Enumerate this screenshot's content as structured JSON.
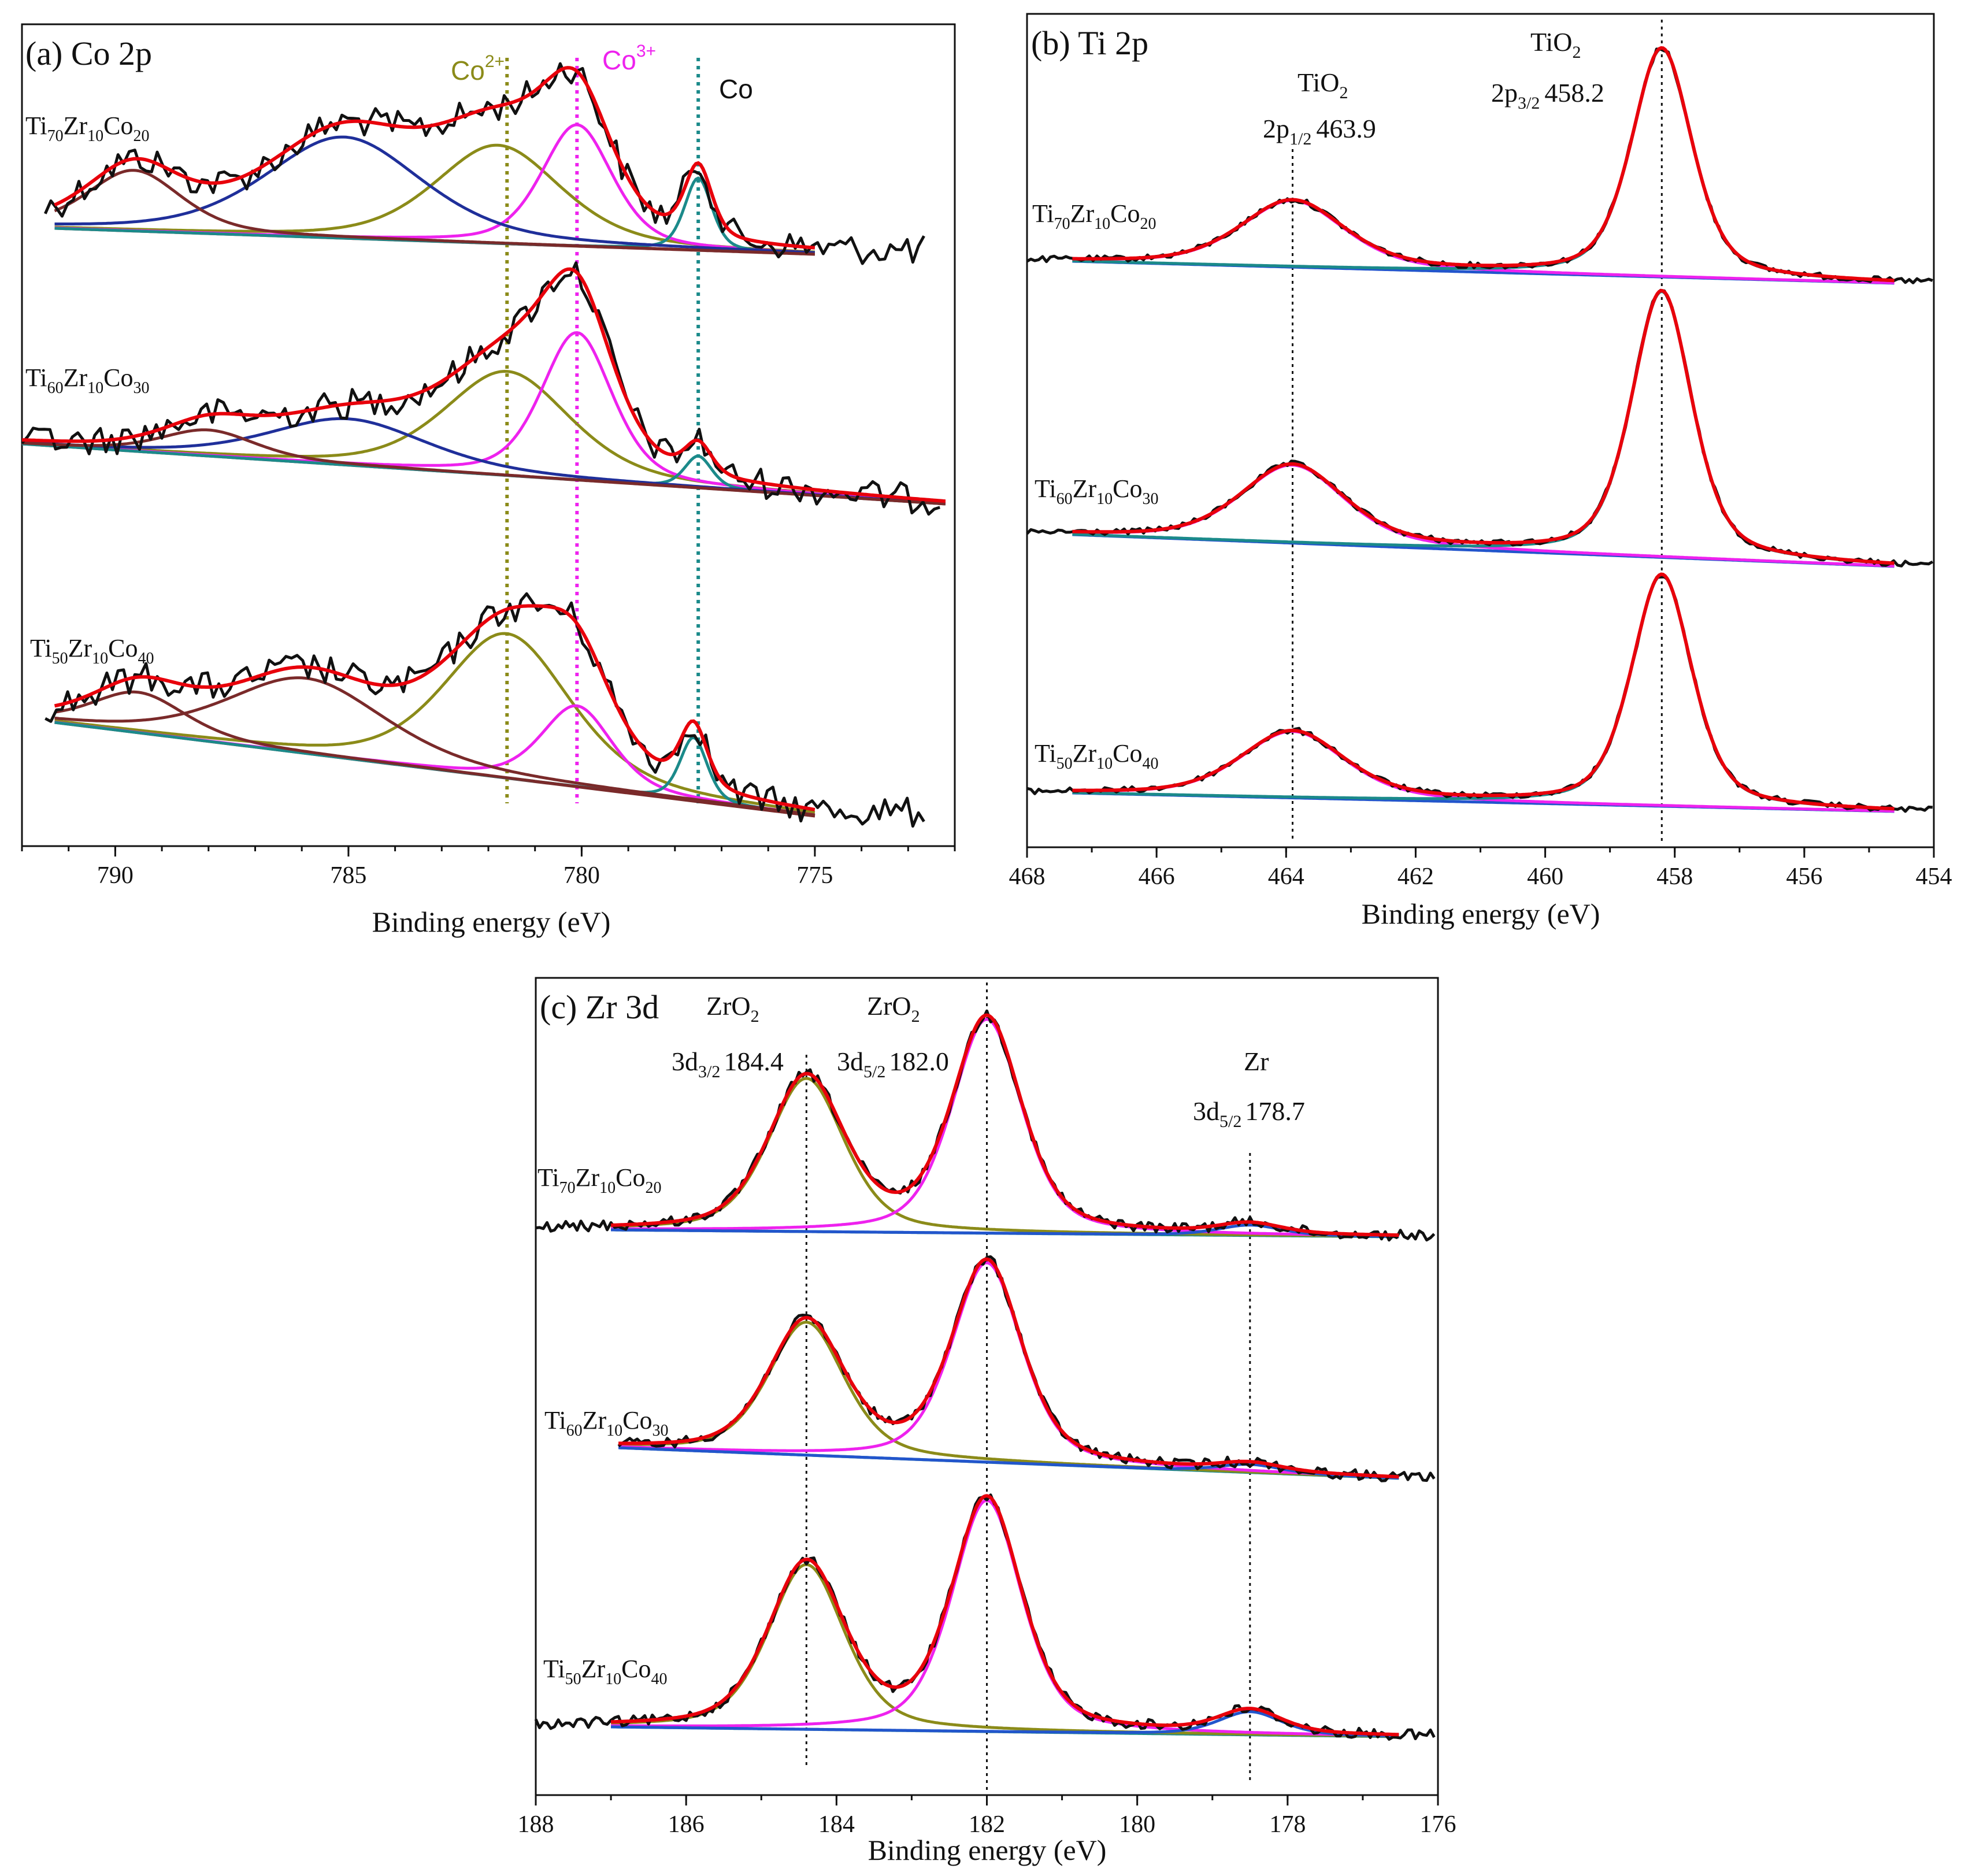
{
  "colors": {
    "raw": "#111111",
    "envelope": "#e8000b",
    "co2plus": "#8b8b19",
    "co3plus": "#ee22ee",
    "co_metal": "#1b8a8a",
    "sat_blue": "#1f2f9a",
    "sat_brown": "#7a2a2a",
    "zro2_32": "#8b8b19",
    "zro2_52": "#ee22ee",
    "baseline": "#1f8ab0"
  },
  "chart_data": [
    {
      "type": "line",
      "panel": "a",
      "title": "(a) Co 2p",
      "xlabel": "Binding energy (eV)",
      "ylabel": "",
      "xlim": [
        792,
        772
      ],
      "x_reversed": true,
      "x_ticks": [
        790,
        785,
        780,
        775
      ],
      "x_tick_labels": [
        "790",
        "785",
        "780",
        "775"
      ],
      "reference_lines": [
        {
          "label": "Co2+",
          "x": 781.6,
          "color": "#8b8b19"
        },
        {
          "label": "Co3+",
          "x": 780.1,
          "color": "#ee22ee"
        },
        {
          "label": "Co",
          "x": 777.5,
          "color": "#1b8a8a"
        }
      ],
      "samples": [
        {
          "name": "Ti70Zr10Co20",
          "components": [
            {
              "label": "Co2+",
              "center": 781.8,
              "color": "#8b8b19"
            },
            {
              "label": "Co3+",
              "center": 780.1,
              "color": "#ee22ee"
            },
            {
              "label": "Co",
              "center": 777.5,
              "color": "#1b8a8a"
            },
            {
              "label": "satellite",
              "center": 785.1,
              "color": "#1f2f9a"
            },
            {
              "label": "satellite",
              "center": 789.6,
              "color": "#7a2a2a"
            }
          ]
        },
        {
          "name": "Ti60Zr10Co30",
          "components": [
            {
              "label": "Co2+",
              "center": 781.6,
              "color": "#8b8b19"
            },
            {
              "label": "Co3+",
              "center": 780.1,
              "color": "#ee22ee"
            },
            {
              "label": "Co",
              "center": 777.5,
              "color": "#1b8a8a"
            },
            {
              "label": "satellite",
              "center": 785.0,
              "color": "#1f2f9a"
            },
            {
              "label": "satellite",
              "center": 788.0,
              "color": "#7a2a2a"
            }
          ]
        },
        {
          "name": "Ti50Zr10Co40",
          "components": [
            {
              "label": "Co2+",
              "center": 781.6,
              "color": "#8b8b19"
            },
            {
              "label": "Co3+",
              "center": 780.1,
              "color": "#ee22ee"
            },
            {
              "label": "Co",
              "center": 777.6,
              "color": "#1b8a8a"
            },
            {
              "label": "satellite",
              "center": 785.9,
              "color": "#7a2a2a"
            },
            {
              "label": "satellite",
              "center": 789.5,
              "color": "#7a2a2a"
            }
          ]
        }
      ]
    },
    {
      "type": "line",
      "panel": "b",
      "title": "(b) Ti 2p",
      "xlabel": "Binding energy (eV)",
      "ylabel": "",
      "xlim": [
        468,
        454
      ],
      "x_reversed": true,
      "x_ticks": [
        468,
        466,
        464,
        462,
        460,
        458,
        456,
        454
      ],
      "x_tick_labels": [
        "468",
        "466",
        "464",
        "462",
        "460",
        "458",
        "456",
        "454"
      ],
      "peaks": [
        {
          "species": "TiO2",
          "orbital": "2p",
          "sub": "1/2",
          "energy": 463.9
        },
        {
          "species": "TiO2",
          "orbital": "2p",
          "sub": "3/2",
          "energy": 458.2
        }
      ],
      "samples": [
        {
          "name": "Ti70Zr10Co20"
        },
        {
          "name": "Ti60Zr10Co30"
        },
        {
          "name": "Ti50Zr10Co40"
        }
      ]
    },
    {
      "type": "line",
      "panel": "c",
      "title": "(c) Zr 3d",
      "xlabel": "Binding energy (eV)",
      "ylabel": "",
      "xlim": [
        188,
        176
      ],
      "x_reversed": true,
      "x_ticks": [
        188,
        186,
        184,
        182,
        180,
        178,
        176
      ],
      "x_tick_labels": [
        "188",
        "186",
        "184",
        "182",
        "180",
        "178",
        "176"
      ],
      "peaks": [
        {
          "species": "ZrO2",
          "orbital": "3d",
          "sub": "3/2",
          "energy": 184.4
        },
        {
          "species": "ZrO2",
          "orbital": "3d",
          "sub": "5/2",
          "energy": 182.0
        },
        {
          "species": "Zr",
          "orbital": "3d",
          "sub": "5/2",
          "energy": 178.7
        }
      ],
      "samples": [
        {
          "name": "Ti70Zr10Co20"
        },
        {
          "name": "Ti60Zr10Co30"
        },
        {
          "name": "Ti50Zr10Co40"
        }
      ]
    }
  ],
  "text": {
    "a_title": "(a) Co 2p",
    "b_title": "(b) Ti 2p",
    "c_title": "(c) Zr 3d",
    "xlabel": "Binding energy (eV)",
    "co2_base": "Co",
    "co2_sup": "2+",
    "co3_base": "Co",
    "co3_sup": "3+",
    "co_label": "Co",
    "tio2_a": "TiO",
    "tio2_a_sub": "2",
    "tio2_a_orb": "2p",
    "tio2_a_orb_sub": "1/2",
    "tio2_a_val": "463.9",
    "tio2_b": "TiO",
    "tio2_b_sub": "2",
    "tio2_b_orb": "2p",
    "tio2_b_orb_sub": "3/2",
    "tio2_b_val": "458.2",
    "zro2_a": "ZrO",
    "zro2_a_sub": "2",
    "zro2_a_orb": "3d",
    "zro2_a_orb_sub": "3/2",
    "zro2_a_val": "184.4",
    "zro2_b": "ZrO",
    "zro2_b_sub": "2",
    "zro2_b_orb": "3d",
    "zro2_b_orb_sub": "5/2",
    "zro2_b_val": "182.0",
    "zr_c": "Zr",
    "zr_c_orb": "3d",
    "zr_c_orb_sub": "5/2",
    "zr_c_val": "178.7",
    "s_ti": "Ti",
    "s_zr": "Zr",
    "s_co": "Co",
    "n70": "70",
    "n10": "10",
    "n20": "20",
    "n60": "60",
    "n30": "30",
    "n50": "50",
    "n40": "40"
  }
}
